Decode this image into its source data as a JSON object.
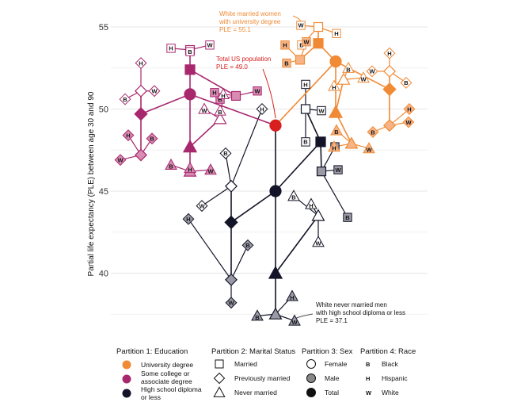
{
  "chart_data": {
    "type": "scatter",
    "ylabel": "Partial life expectancy (PLE) between age 30 and 90",
    "ylim": [
      36.5,
      55.5
    ],
    "yticks": [
      40,
      45,
      50,
      55
    ],
    "grid": true,
    "colors": {
      "University degree": "#F08A35",
      "Some college or associate degree": "#A8286E",
      "High school diploma or less": "#141428",
      "Total US": "#D81E1E"
    },
    "annotations": [
      {
        "lines": [
          "White married women",
          "with university degree",
          "PLE = 55.1"
        ],
        "color": "#F08A35"
      },
      {
        "lines": [
          "Total US population",
          "PLE = 49.0"
        ],
        "color": "#D81E1E"
      },
      {
        "lines": [
          "White never married men",
          "with high school diploma or less",
          "PLE = 37.1"
        ],
        "color": "#111111"
      }
    ],
    "nodes": [
      {
        "id": "root",
        "edu": "Total US",
        "shape": "circle",
        "fill": "total",
        "y": 49.0
      },
      {
        "id": "hs",
        "edu": "High school diploma or less",
        "shape": "circle",
        "fill": "total",
        "y": 45.0
      },
      {
        "id": "hs_m",
        "edu": "High school diploma or less",
        "shape": "square",
        "fill": "total",
        "y": 48.0
      },
      {
        "id": "hs_p",
        "edu": "High school diploma or less",
        "shape": "diamond",
        "fill": "total",
        "y": 43.1
      },
      {
        "id": "hs_n",
        "edu": "High school diploma or less",
        "shape": "triangle",
        "fill": "total",
        "y": 40.0
      },
      {
        "id": "hs_m_f",
        "edu": "High school diploma or less",
        "shape": "square",
        "fill": "female",
        "y": 50.0
      },
      {
        "id": "hs_m_m",
        "edu": "High school diploma or less",
        "shape": "square",
        "fill": "male",
        "y": 46.2
      },
      {
        "id": "hs_p_f",
        "edu": "High school diploma or less",
        "shape": "diamond",
        "fill": "female",
        "y": 45.3
      },
      {
        "id": "hs_p_m",
        "edu": "High school diploma or less",
        "shape": "diamond",
        "fill": "male",
        "y": 39.6
      },
      {
        "id": "hs_n_f",
        "edu": "High school diploma or less",
        "shape": "triangle",
        "fill": "female",
        "y": 43.5
      },
      {
        "id": "hs_n_m",
        "edu": "High school diploma or less",
        "shape": "triangle",
        "fill": "male",
        "y": 37.5
      },
      {
        "id": "hs_m_f_b",
        "edu": "High school diploma or less",
        "shape": "square",
        "fill": "race",
        "race": "B",
        "y": 48.0
      },
      {
        "id": "hs_m_f_h",
        "edu": "High school diploma or less",
        "shape": "square",
        "fill": "race",
        "race": "H",
        "y": 51.5
      },
      {
        "id": "hs_m_f_w",
        "edu": "High school diploma or less",
        "shape": "square",
        "fill": "race",
        "race": "W",
        "y": 49.9
      },
      {
        "id": "hs_m_m_b",
        "edu": "High school diploma or less",
        "shape": "square",
        "fill": "race",
        "race": "B",
        "y": 43.4
      },
      {
        "id": "hs_m_m_h",
        "edu": "High school diploma or less",
        "shape": "square",
        "fill": "race",
        "race": "H",
        "y": 47.7
      },
      {
        "id": "hs_m_m_w",
        "edu": "High school diploma or less",
        "shape": "square",
        "fill": "race",
        "race": "W",
        "y": 46.3
      },
      {
        "id": "hs_p_f_b",
        "edu": "High school diploma or less",
        "shape": "diamond",
        "fill": "race",
        "race": "B",
        "y": 47.3
      },
      {
        "id": "hs_p_f_h",
        "edu": "High school diploma or less",
        "shape": "diamond",
        "fill": "race",
        "race": "H",
        "y": 50.0
      },
      {
        "id": "hs_p_f_w",
        "edu": "High school diploma or less",
        "shape": "diamond",
        "fill": "race",
        "race": "W",
        "y": 44.1
      },
      {
        "id": "hs_p_m_b",
        "edu": "High school diploma or less",
        "shape": "diamond",
        "fill": "race",
        "race": "B",
        "y": 41.7
      },
      {
        "id": "hs_p_m_h",
        "edu": "High school diploma or less",
        "shape": "diamond",
        "fill": "race",
        "race": "H",
        "y": 43.3
      },
      {
        "id": "hs_p_m_w",
        "edu": "High school diploma or less",
        "shape": "diamond",
        "fill": "race",
        "race": "W",
        "y": 38.2
      },
      {
        "id": "hs_n_f_b",
        "edu": "High school diploma or less",
        "shape": "triangle",
        "fill": "race",
        "race": "B",
        "y": 44.7
      },
      {
        "id": "hs_n_f_h",
        "edu": "High school diploma or less",
        "shape": "triangle",
        "fill": "race",
        "race": "H",
        "y": 44.2
      },
      {
        "id": "hs_n_f_w",
        "edu": "High school diploma or less",
        "shape": "triangle",
        "fill": "race",
        "race": "W",
        "y": 41.9
      },
      {
        "id": "hs_n_m_b",
        "edu": "High school diploma or less",
        "shape": "triangle",
        "fill": "race",
        "race": "B",
        "y": 37.4
      },
      {
        "id": "hs_n_m_h",
        "edu": "High school diploma or less",
        "shape": "triangle",
        "fill": "race",
        "race": "H",
        "y": 38.6
      },
      {
        "id": "hs_n_m_w",
        "edu": "High school diploma or less",
        "shape": "triangle",
        "fill": "race",
        "race": "W",
        "y": 37.1
      },
      {
        "id": "sc",
        "edu": "Some college or associate degree",
        "shape": "circle",
        "fill": "total",
        "y": 50.9
      },
      {
        "id": "sc_m",
        "edu": "Some college or associate degree",
        "shape": "square",
        "fill": "total",
        "y": 52.4
      },
      {
        "id": "sc_p",
        "edu": "Some college or associate degree",
        "shape": "diamond",
        "fill": "total",
        "y": 49.7
      },
      {
        "id": "sc_n",
        "edu": "Some college or associate degree",
        "shape": "triangle",
        "fill": "total",
        "y": 47.7
      },
      {
        "id": "sc_m_f",
        "edu": "Some college or associate degree",
        "shape": "square",
        "fill": "female",
        "y": 53.6
      },
      {
        "id": "sc_m_m",
        "edu": "Some college or associate degree",
        "shape": "square",
        "fill": "male",
        "y": 50.8
      },
      {
        "id": "sc_p_f",
        "edu": "Some college or associate degree",
        "shape": "diamond",
        "fill": "female",
        "y": 51.1
      },
      {
        "id": "sc_p_m",
        "edu": "Some college or associate degree",
        "shape": "diamond",
        "fill": "male",
        "y": 47.2
      },
      {
        "id": "sc_n_f",
        "edu": "Some college or associate degree",
        "shape": "triangle",
        "fill": "female",
        "y": 49.4
      },
      {
        "id": "sc_n_m",
        "edu": "Some college or associate degree",
        "shape": "triangle",
        "fill": "male",
        "y": 46.2
      },
      {
        "id": "sc_m_f_b",
        "edu": "Some college or associate degree",
        "shape": "square",
        "fill": "race",
        "race": "B",
        "y": 53.5
      },
      {
        "id": "sc_m_f_h",
        "edu": "Some college or associate degree",
        "shape": "square",
        "fill": "race",
        "race": "H",
        "y": 53.7
      },
      {
        "id": "sc_m_f_w",
        "edu": "Some college or associate degree",
        "shape": "square",
        "fill": "race",
        "race": "W",
        "y": 53.9
      },
      {
        "id": "sc_m_m_b",
        "edu": "Some college or associate degree",
        "shape": "square",
        "fill": "race",
        "race": "B",
        "y": 50.6
      },
      {
        "id": "sc_m_m_h",
        "edu": "Some college or associate degree",
        "shape": "square",
        "fill": "race",
        "race": "H",
        "y": 51.0
      },
      {
        "id": "sc_m_m_w",
        "edu": "Some college or associate degree",
        "shape": "square",
        "fill": "race",
        "race": "W",
        "y": 51.1
      },
      {
        "id": "sc_p_f_b",
        "edu": "Some college or associate degree",
        "shape": "diamond",
        "fill": "race",
        "race": "B",
        "y": 50.6
      },
      {
        "id": "sc_p_f_h",
        "edu": "Some college or associate degree",
        "shape": "diamond",
        "fill": "race",
        "race": "H",
        "y": 52.8
      },
      {
        "id": "sc_p_f_w",
        "edu": "Some college or associate degree",
        "shape": "diamond",
        "fill": "race",
        "race": "W",
        "y": 51.1
      },
      {
        "id": "sc_p_m_b",
        "edu": "Some college or associate degree",
        "shape": "diamond",
        "fill": "race",
        "race": "B",
        "y": 48.2
      },
      {
        "id": "sc_p_m_h",
        "edu": "Some college or associate degree",
        "shape": "diamond",
        "fill": "race",
        "race": "H",
        "y": 48.4
      },
      {
        "id": "sc_p_m_w",
        "edu": "Some college or associate degree",
        "shape": "diamond",
        "fill": "race",
        "race": "W",
        "y": 46.9
      },
      {
        "id": "sc_n_f_b",
        "edu": "Some college or associate degree",
        "shape": "triangle",
        "fill": "race",
        "race": "B",
        "y": 49.9
      },
      {
        "id": "sc_n_f_h",
        "edu": "Some college or associate degree",
        "shape": "triangle",
        "fill": "race",
        "race": "H",
        "y": 50.9
      },
      {
        "id": "sc_n_f_w",
        "edu": "Some college or associate degree",
        "shape": "triangle",
        "fill": "race",
        "race": "W",
        "y": 50.0
      },
      {
        "id": "sc_n_m_b",
        "edu": "Some college or associate degree",
        "shape": "triangle",
        "fill": "race",
        "race": "B",
        "y": 46.6
      },
      {
        "id": "sc_n_m_h",
        "edu": "Some college or associate degree",
        "shape": "triangle",
        "fill": "race",
        "race": "H",
        "y": 46.4
      },
      {
        "id": "sc_n_m_w",
        "edu": "Some college or associate degree",
        "shape": "triangle",
        "fill": "race",
        "race": "W",
        "y": 46.3
      },
      {
        "id": "un",
        "edu": "University degree",
        "shape": "circle",
        "fill": "total",
        "y": 52.9
      },
      {
        "id": "un_m",
        "edu": "University degree",
        "shape": "square",
        "fill": "total",
        "y": 54.0
      },
      {
        "id": "un_p",
        "edu": "University degree",
        "shape": "diamond",
        "fill": "total",
        "y": 51.2
      },
      {
        "id": "un_n",
        "edu": "University degree",
        "shape": "triangle",
        "fill": "total",
        "y": 49.8
      },
      {
        "id": "un_m_f",
        "edu": "University degree",
        "shape": "square",
        "fill": "female",
        "y": 55.0
      },
      {
        "id": "un_m_m",
        "edu": "University degree",
        "shape": "square",
        "fill": "male",
        "y": 53.0
      },
      {
        "id": "un_p_f",
        "edu": "University degree",
        "shape": "diamond",
        "fill": "female",
        "y": 52.3
      },
      {
        "id": "un_p_m",
        "edu": "University degree",
        "shape": "diamond",
        "fill": "male",
        "y": 49.0
      },
      {
        "id": "un_n_f",
        "edu": "University degree",
        "shape": "triangle",
        "fill": "female",
        "y": 51.8
      },
      {
        "id": "un_n_m",
        "edu": "University degree",
        "shape": "triangle",
        "fill": "male",
        "y": 47.9
      },
      {
        "id": "un_m_f_b",
        "edu": "University degree",
        "shape": "square",
        "fill": "race",
        "race": "B",
        "y": 53.9
      },
      {
        "id": "un_m_f_h",
        "edu": "University degree",
        "shape": "square",
        "fill": "race",
        "race": "H",
        "y": 54.6
      },
      {
        "id": "un_m_f_w",
        "edu": "University degree",
        "shape": "square",
        "fill": "race",
        "race": "W",
        "y": 55.1
      },
      {
        "id": "un_m_m_b",
        "edu": "University degree",
        "shape": "square",
        "fill": "race",
        "race": "B",
        "y": 52.8
      },
      {
        "id": "un_m_m_h",
        "edu": "University degree",
        "shape": "square",
        "fill": "race",
        "race": "H",
        "y": 53.9
      },
      {
        "id": "un_m_m_w",
        "edu": "University degree",
        "shape": "square",
        "fill": "race",
        "race": "W",
        "y": 54.1
      },
      {
        "id": "un_p_f_b",
        "edu": "University degree",
        "shape": "diamond",
        "fill": "race",
        "race": "B",
        "y": 51.6
      },
      {
        "id": "un_p_f_h",
        "edu": "University degree",
        "shape": "diamond",
        "fill": "race",
        "race": "H",
        "y": 53.4
      },
      {
        "id": "un_p_f_w",
        "edu": "University degree",
        "shape": "diamond",
        "fill": "race",
        "race": "W",
        "y": 52.3
      },
      {
        "id": "un_p_m_b",
        "edu": "University degree",
        "shape": "diamond",
        "fill": "race",
        "race": "B",
        "y": 48.6
      },
      {
        "id": "un_p_m_h",
        "edu": "University degree",
        "shape": "diamond",
        "fill": "race",
        "race": "H",
        "y": 50.0
      },
      {
        "id": "un_p_m_w",
        "edu": "University degree",
        "shape": "diamond",
        "fill": "race",
        "race": "W",
        "y": 49.2
      },
      {
        "id": "un_n_f_b",
        "edu": "University degree",
        "shape": "triangle",
        "fill": "race",
        "race": "B",
        "y": 52.5
      },
      {
        "id": "un_n_f_h",
        "edu": "University degree",
        "shape": "triangle",
        "fill": "race",
        "race": "H",
        "y": 51.4
      },
      {
        "id": "un_n_f_w",
        "edu": "University degree",
        "shape": "triangle",
        "fill": "race",
        "race": "W",
        "y": 51.9
      },
      {
        "id": "un_n_m_b",
        "edu": "University degree",
        "shape": "triangle",
        "fill": "race",
        "race": "B",
        "y": 48.7
      },
      {
        "id": "un_n_m_h",
        "edu": "University degree",
        "shape": "triangle",
        "fill": "race",
        "race": "H",
        "y": 47.7
      },
      {
        "id": "un_n_m_w",
        "edu": "University degree",
        "shape": "triangle",
        "fill": "race",
        "race": "W",
        "y": 47.6
      }
    ]
  },
  "legend": {
    "education": {
      "title": "Partition 1: Education",
      "items": [
        {
          "label": "University degree",
          "color": "#F08A35"
        },
        {
          "label": "Some college or associate degree",
          "color": "#A8286E"
        },
        {
          "label": "High school diploma or less",
          "color": "#141428"
        }
      ]
    },
    "marital": {
      "title": "Partition 2: Marital Status",
      "items": [
        {
          "label": "Married",
          "shape": "square"
        },
        {
          "label": "Previously married",
          "shape": "diamond"
        },
        {
          "label": "Never married",
          "shape": "triangle"
        }
      ]
    },
    "sex": {
      "title": "Partition 3: Sex",
      "items": [
        {
          "label": "Female",
          "fill": "white"
        },
        {
          "label": "Male",
          "fill": "gray"
        },
        {
          "label": "Total",
          "fill": "black"
        }
      ]
    },
    "race": {
      "title": "Partition 4: Race",
      "items": [
        {
          "letter": "B",
          "label": "Black"
        },
        {
          "letter": "H",
          "label": "Hispanic"
        },
        {
          "letter": "W",
          "label": "White"
        }
      ]
    }
  }
}
